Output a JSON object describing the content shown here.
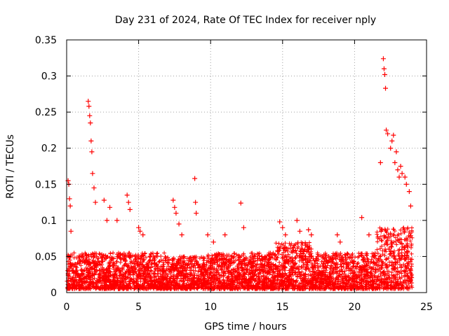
{
  "chart_data": {
    "type": "scatter",
    "title": "Day 231 of 2024, Rate Of TEC Index for receiver nply",
    "xlabel": "GPS time / hours",
    "ylabel": "ROTI / TECUs",
    "xlim": [
      0,
      25
    ],
    "ylim": [
      0,
      0.35
    ],
    "xticks": [
      "0",
      "5",
      "10",
      "15",
      "20",
      "25"
    ],
    "yticks": [
      "0",
      "0.05",
      "0.1",
      "0.15",
      "0.2",
      "0.25",
      "0.3",
      "0.35"
    ],
    "grid": true,
    "marker": "+",
    "color": "#ff0000",
    "series": [
      {
        "x": [
          0.1,
          0.15,
          0.2,
          0.25,
          0.3,
          1.5,
          1.55,
          1.6,
          1.65,
          1.7,
          1.75,
          1.8,
          1.9,
          2.0,
          2.6,
          2.8,
          3.0,
          3.5,
          4.2,
          4.3,
          4.4,
          5.0,
          5.1,
          5.3,
          7.4,
          7.5,
          7.6,
          7.8,
          8.0,
          8.9,
          8.95,
          9.0,
          9.8,
          10.2,
          11.0,
          12.1,
          12.3,
          14.8,
          15.0,
          15.2,
          16.0,
          16.2,
          16.8,
          17.0,
          18.8,
          19.0,
          20.5,
          21.0,
          21.8,
          22.0,
          22.05,
          22.1,
          22.15,
          22.2,
          22.3,
          22.5,
          22.6,
          22.7,
          22.8,
          22.9,
          23.0,
          23.1,
          23.2,
          23.3,
          23.5,
          23.6,
          23.8,
          23.9
        ],
        "y": [
          0.155,
          0.15,
          0.13,
          0.12,
          0.085,
          0.265,
          0.258,
          0.245,
          0.235,
          0.21,
          0.195,
          0.165,
          0.145,
          0.125,
          0.128,
          0.1,
          0.118,
          0.1,
          0.135,
          0.125,
          0.115,
          0.09,
          0.085,
          0.08,
          0.128,
          0.118,
          0.11,
          0.095,
          0.08,
          0.158,
          0.125,
          0.11,
          0.08,
          0.07,
          0.08,
          0.124,
          0.09,
          0.098,
          0.09,
          0.08,
          0.1,
          0.085,
          0.087,
          0.08,
          0.08,
          0.07,
          0.104,
          0.08,
          0.18,
          0.324,
          0.31,
          0.302,
          0.283,
          0.225,
          0.22,
          0.2,
          0.21,
          0.218,
          0.18,
          0.195,
          0.17,
          0.16,
          0.175,
          0.165,
          0.16,
          0.15,
          0.14,
          0.12
        ]
      }
    ]
  }
}
